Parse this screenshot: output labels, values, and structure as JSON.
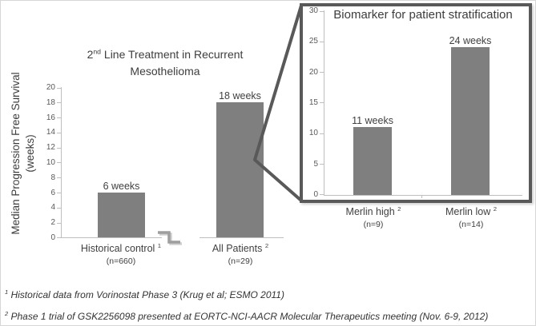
{
  "main_chart": {
    "title_prefix": "2",
    "title_sup": "nd",
    "title_rest": " Line Treatment in Recurrent",
    "title_line2": "Mesothelioma",
    "y_axis_title_line1": "Median Progression Free Survival",
    "y_axis_title_line2": "(weeks)",
    "yticks": [
      "20",
      "18",
      "16",
      "14",
      "12",
      "10",
      "8",
      "6",
      "4",
      "2",
      "0"
    ],
    "bars": [
      {
        "value": 6,
        "data_label": "6 weeks",
        "category": "Historical control",
        "category_sup": "1",
        "n_label": "(n=660)"
      },
      {
        "value": 18,
        "data_label": "18 weeks",
        "category": "All Patients",
        "category_sup": "2",
        "n_label": "(n=29)"
      }
    ]
  },
  "inset_chart": {
    "title": "Biomarker for patient stratification",
    "yticks": [
      "30",
      "25",
      "20",
      "15",
      "10",
      "5",
      "0"
    ],
    "bars": [
      {
        "value": 11,
        "data_label": "11 weeks",
        "category": "Merlin high",
        "category_sup": "2",
        "n_label": "(n=9)"
      },
      {
        "value": 24,
        "data_label": "24 weeks",
        "category": "Merlin low",
        "category_sup": "2",
        "n_label": "(n=14)"
      }
    ]
  },
  "footnotes": [
    {
      "sup": "1",
      "text": " Historical data from Vorinostat Phase 3 (Krug et al; ESMO 2011)"
    },
    {
      "sup": "2",
      "text": " Phase 1 trial of GSK2256098 presented at EORTC-NCI-AACR Molecular Therapeutics meeting (Nov. 6-9, 2012)"
    }
  ],
  "colors": {
    "bar": "#7f7f7f",
    "axis_line": "#bfbfbf",
    "tick_text": "#595959",
    "title_text": "#3d3d3d",
    "callout_and_border": "#595959",
    "break_glyph": "#9e9e9e"
  },
  "chart_data": [
    {
      "type": "bar",
      "title": "2nd Line Treatment in Recurrent Mesothelioma",
      "xlabel": "",
      "ylabel": "Median Progression Free Survival (weeks)",
      "categories": [
        "Historical control (n=660)",
        "All Patients (n=29)"
      ],
      "values": [
        6,
        18
      ],
      "data_labels": [
        "6 weeks",
        "18 weeks"
      ],
      "ylim": [
        0,
        20
      ],
      "ytick_step": 2,
      "grid": false,
      "legend": "none",
      "bar_color": "#7f7f7f",
      "notes": "x-axis has a break symbol between the two bars; callout lines magnify the All Patients bar into the inset chart"
    },
    {
      "type": "bar",
      "title": "Biomarker for patient stratification",
      "xlabel": "",
      "ylabel": "",
      "categories": [
        "Merlin high (n=9)",
        "Merlin low (n=14)"
      ],
      "values": [
        11,
        24
      ],
      "data_labels": [
        "11 weeks",
        "24 weeks"
      ],
      "ylim": [
        0,
        30
      ],
      "ytick_step": 5,
      "grid": false,
      "legend": "none",
      "bar_color": "#7f7f7f",
      "notes": "inset chart inside a thick dark border box, magnification of the All Patients bar"
    }
  ]
}
